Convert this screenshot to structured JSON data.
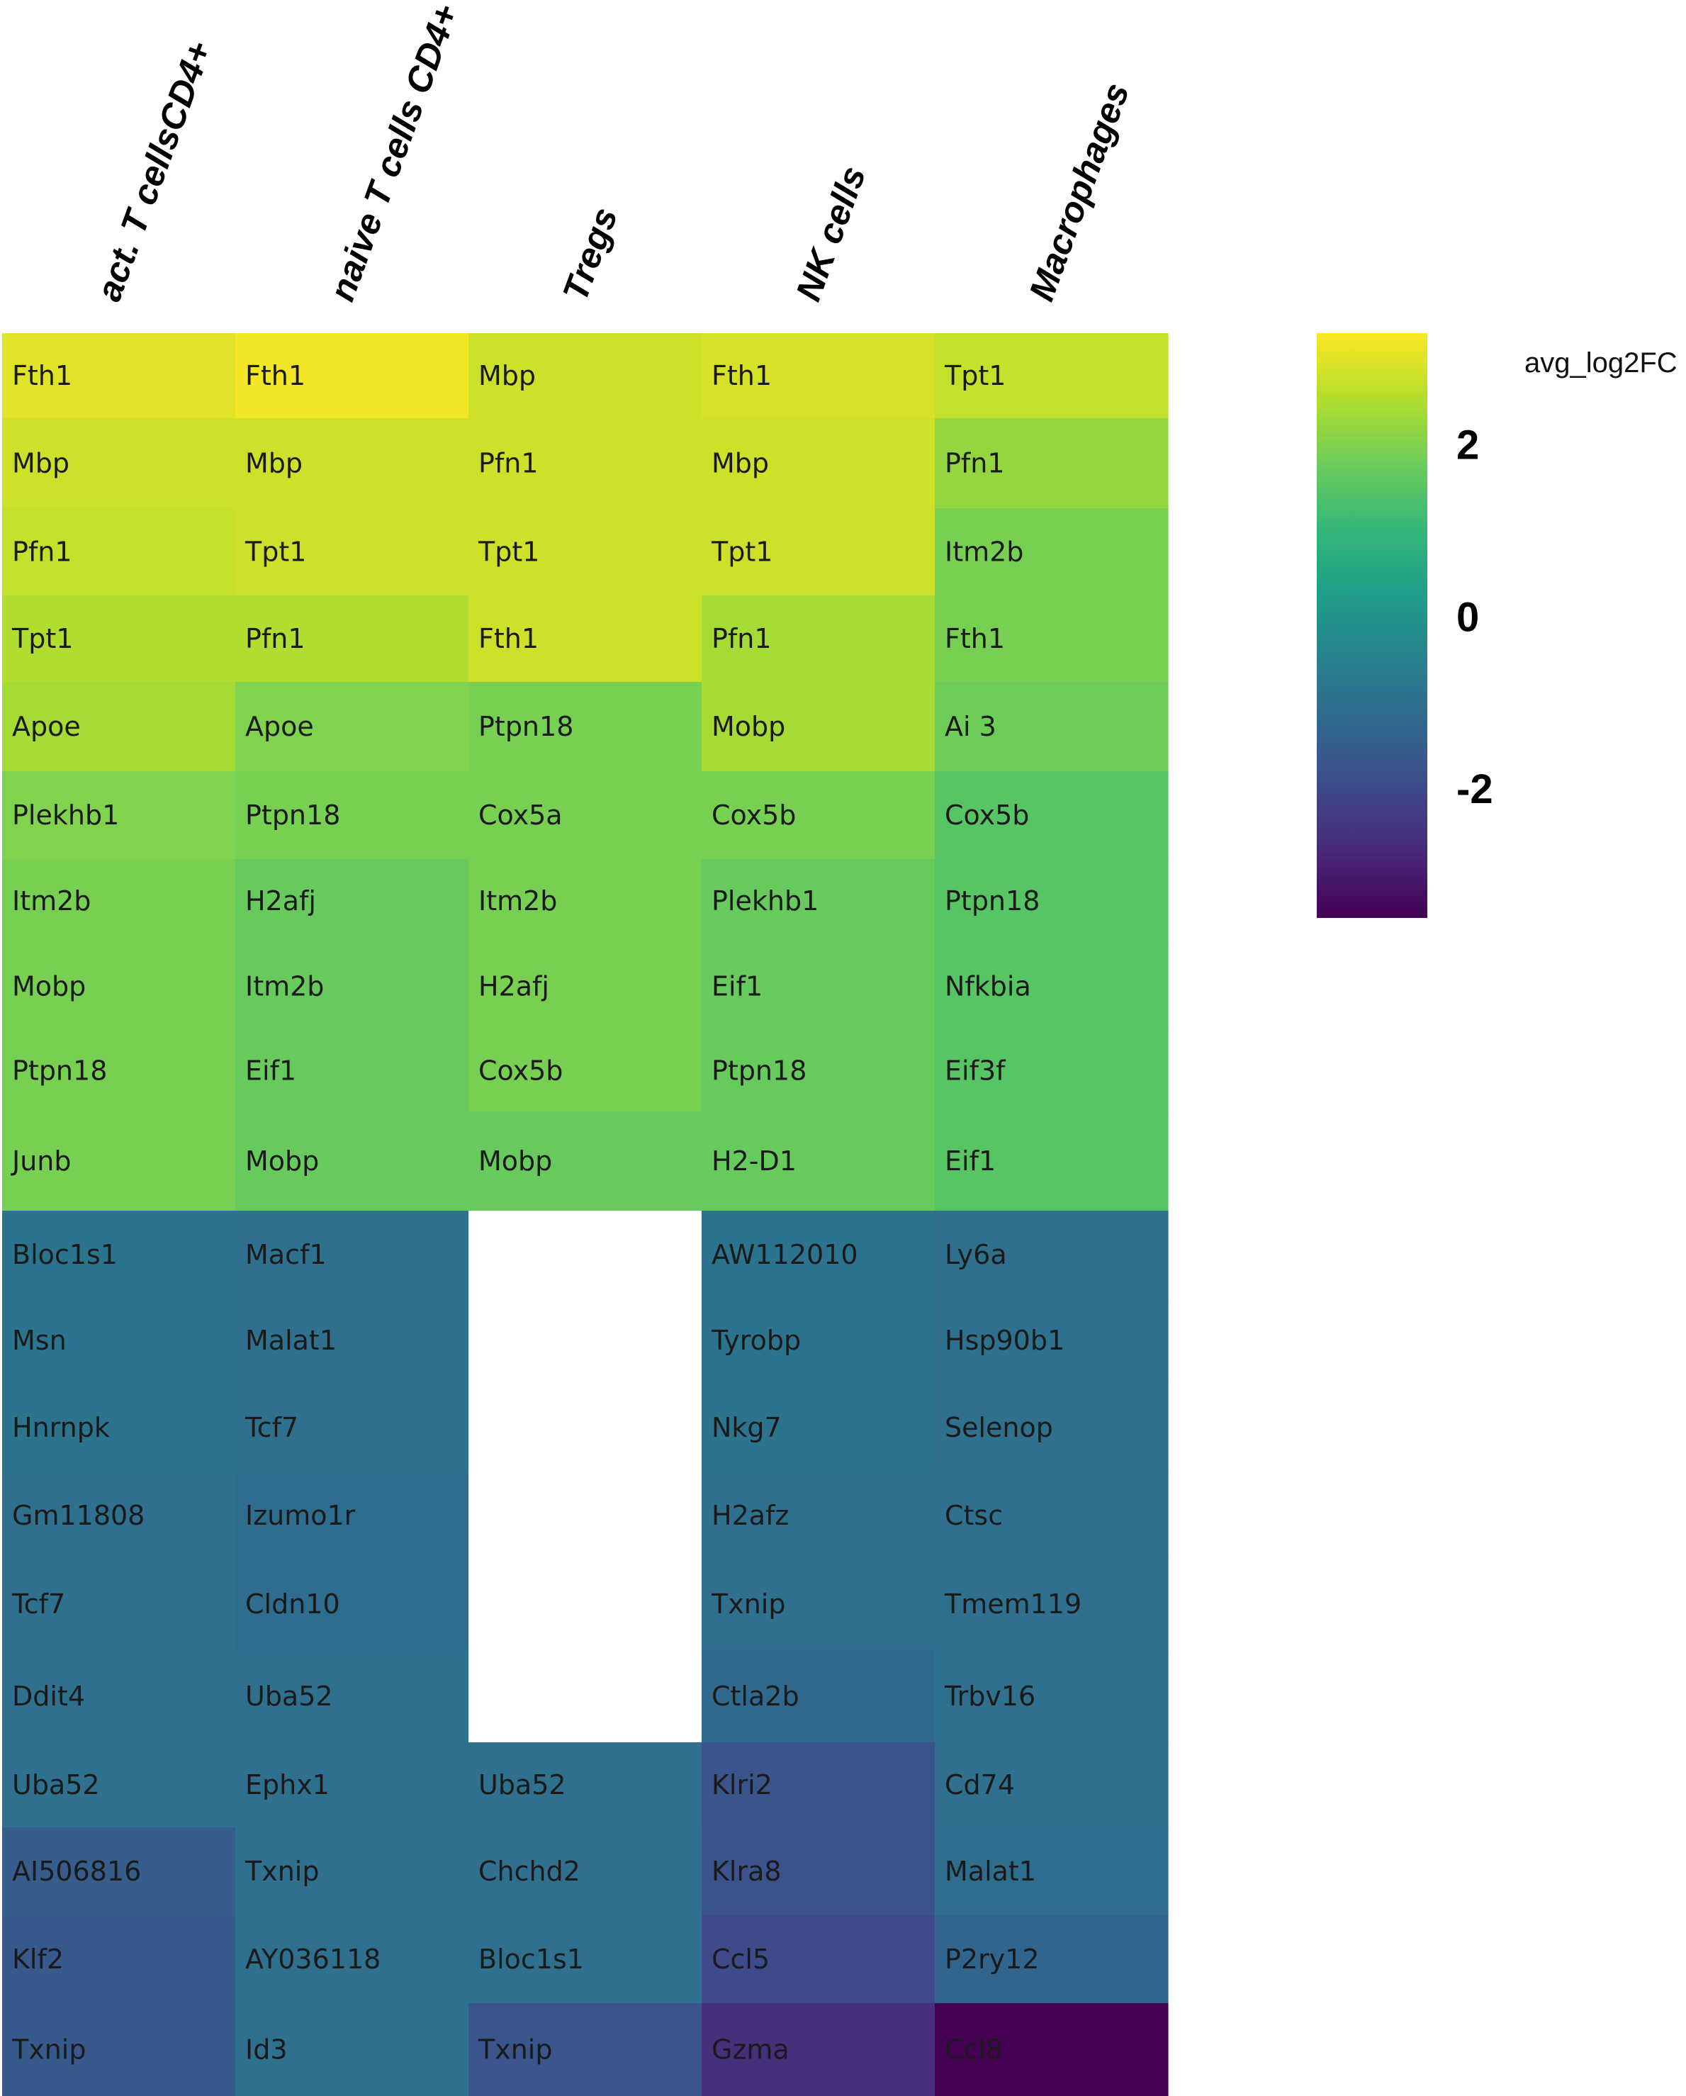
{
  "chart_data": {
    "type": "heatmap",
    "columns": [
      "act. T cellsCD4+",
      "naive T cells CD4+",
      "Tregs",
      "NK cells",
      "Macrophages"
    ],
    "rows_per_column": [
      [
        {
          "gene": "Fth1",
          "value": 3.0
        },
        {
          "gene": "Mbp",
          "value": 2.8
        },
        {
          "gene": "Pfn1",
          "value": 2.7
        },
        {
          "gene": "Tpt1",
          "value": 2.5
        },
        {
          "gene": "Apoe",
          "value": 2.4
        },
        {
          "gene": "Plekhb1",
          "value": 2.0
        },
        {
          "gene": "Itm2b",
          "value": 1.9
        },
        {
          "gene": "Mobp",
          "value": 1.9
        },
        {
          "gene": "Ptpn18",
          "value": 1.9
        },
        {
          "gene": "Junb",
          "value": 1.9
        },
        {
          "gene": "Bloc1s1",
          "value": -0.9
        },
        {
          "gene": "Msn",
          "value": -0.9
        },
        {
          "gene": "Hnrnpk",
          "value": -0.9
        },
        {
          "gene": "Gm11808",
          "value": -1.0
        },
        {
          "gene": "Tcf7",
          "value": -1.0
        },
        {
          "gene": "Ddit4",
          "value": -1.0
        },
        {
          "gene": "Uba52",
          "value": -1.0
        },
        {
          "gene": "AI506816",
          "value": -1.5
        },
        {
          "gene": "Klf2",
          "value": -1.6
        },
        {
          "gene": "Txnip",
          "value": -1.6
        }
      ],
      [
        {
          "gene": "Fth1",
          "value": 3.2
        },
        {
          "gene": "Mbp",
          "value": 2.8
        },
        {
          "gene": "Tpt1",
          "value": 2.8
        },
        {
          "gene": "Pfn1",
          "value": 2.5
        },
        {
          "gene": "Apoe",
          "value": 2.0
        },
        {
          "gene": "Ptpn18",
          "value": 1.9
        },
        {
          "gene": "H2afj",
          "value": 1.7
        },
        {
          "gene": "Itm2b",
          "value": 1.7
        },
        {
          "gene": "Eif1",
          "value": 1.7
        },
        {
          "gene": "Mobp",
          "value": 1.7
        },
        {
          "gene": "Macf1",
          "value": -1.0
        },
        {
          "gene": "Malat1",
          "value": -1.0
        },
        {
          "gene": "Tcf7",
          "value": -1.0
        },
        {
          "gene": "Izumo1r",
          "value": -1.1
        },
        {
          "gene": "Cldn10",
          "value": -1.1
        },
        {
          "gene": "Uba52",
          "value": -1.0
        },
        {
          "gene": "Ephx1",
          "value": -1.0
        },
        {
          "gene": "Txnip",
          "value": -1.0
        },
        {
          "gene": "AY036118",
          "value": -1.0
        },
        {
          "gene": "Id3",
          "value": -1.0
        }
      ],
      [
        {
          "gene": "Mbp",
          "value": 2.8
        },
        {
          "gene": "Pfn1",
          "value": 2.8
        },
        {
          "gene": "Tpt1",
          "value": 2.8
        },
        {
          "gene": "Fth1",
          "value": 2.8
        },
        {
          "gene": "Ptpn18",
          "value": 1.9
        },
        {
          "gene": "Cox5a",
          "value": 1.9
        },
        {
          "gene": "Itm2b",
          "value": 1.9
        },
        {
          "gene": "H2afj",
          "value": 1.9
        },
        {
          "gene": "Cox5b",
          "value": 1.9
        },
        {
          "gene": "Mobp",
          "value": 1.7
        },
        null,
        null,
        null,
        null,
        null,
        null,
        {
          "gene": "Uba52",
          "value": -1.0
        },
        {
          "gene": "Chchd2",
          "value": -1.0
        },
        {
          "gene": "Bloc1s1",
          "value": -1.0
        },
        {
          "gene": "Txnip",
          "value": -1.7
        }
      ],
      [
        {
          "gene": "Fth1",
          "value": 2.9
        },
        {
          "gene": "Mbp",
          "value": 2.8
        },
        {
          "gene": "Tpt1",
          "value": 2.8
        },
        {
          "gene": "Pfn1",
          "value": 2.4
        },
        {
          "gene": "Mobp",
          "value": 2.4
        },
        {
          "gene": "Cox5b",
          "value": 1.9
        },
        {
          "gene": "Plekhb1",
          "value": 1.7
        },
        {
          "gene": "Eif1",
          "value": 1.7
        },
        {
          "gene": "Ptpn18",
          "value": 1.7
        },
        {
          "gene": "H2-D1",
          "value": 1.7
        },
        {
          "gene": "AW112010",
          "value": -0.9
        },
        {
          "gene": "Tyrobp",
          "value": -0.9
        },
        {
          "gene": "Nkg7",
          "value": -0.9
        },
        {
          "gene": "H2afz",
          "value": -1.0
        },
        {
          "gene": "Txnip",
          "value": -1.0
        },
        {
          "gene": "Ctla2b",
          "value": -1.2
        },
        {
          "gene": "Klri2",
          "value": -1.7
        },
        {
          "gene": "Klra8",
          "value": -1.8
        },
        {
          "gene": "Ccl5",
          "value": -2.0
        },
        {
          "gene": "Gzma",
          "value": -2.6
        }
      ],
      [
        {
          "gene": "Tpt1",
          "value": 2.7
        },
        {
          "gene": "Pfn1",
          "value": 2.2
        },
        {
          "gene": "Itm2b",
          "value": 1.9
        },
        {
          "gene": "Fth1",
          "value": 1.9
        },
        {
          "gene": "Ai 3",
          "value": 1.8
        },
        {
          "gene": "Cox5b",
          "value": 1.5
        },
        {
          "gene": "Ptpn18",
          "value": 1.5
        },
        {
          "gene": "Nfkbia",
          "value": 1.5
        },
        {
          "gene": "Eif3f",
          "value": 1.5
        },
        {
          "gene": "Eif1",
          "value": 1.5
        },
        {
          "gene": "Ly6a",
          "value": -1.0
        },
        {
          "gene": "Hsp90b1",
          "value": -1.0
        },
        {
          "gene": "Selenop",
          "value": -1.0
        },
        {
          "gene": "Ctsc",
          "value": -1.0
        },
        {
          "gene": "Tmem119",
          "value": -1.0
        },
        {
          "gene": "Trbv16",
          "value": -1.0
        },
        {
          "gene": "Cd74",
          "value": -1.0
        },
        {
          "gene": "Malat1",
          "value": -1.1
        },
        {
          "gene": "P2ry12",
          "value": -1.3
        },
        {
          "gene": "Ccl8",
          "value": -3.5
        }
      ]
    ],
    "color_scale": {
      "name": "viridis",
      "range": [
        -3.5,
        3.3
      ],
      "ticks": [
        2,
        0,
        -2
      ],
      "tick_labels": [
        "2",
        "0",
        "-2"
      ],
      "title": "avg_log2FC",
      "stops": [
        "#440154",
        "#482878",
        "#3e4a89",
        "#31688e",
        "#26828e",
        "#1f9e89",
        "#35b779",
        "#6dcd59",
        "#b4de2c",
        "#fde725"
      ]
    },
    "missing_color": "#ffffff",
    "legend_position": "right"
  }
}
